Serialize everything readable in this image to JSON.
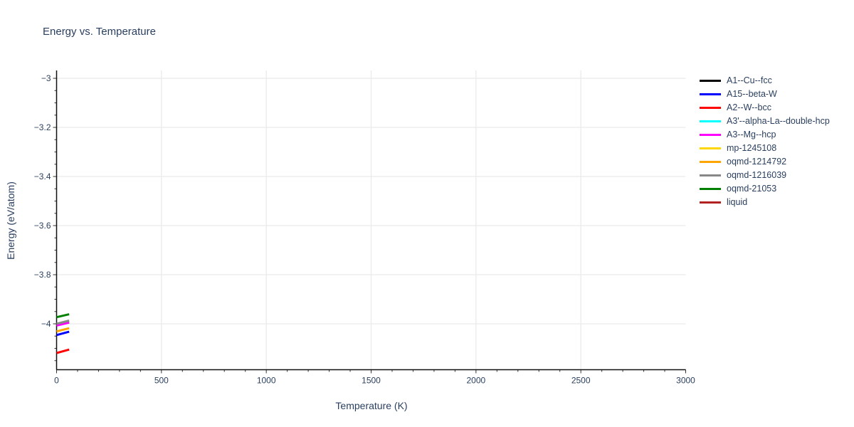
{
  "chart_data": {
    "type": "line",
    "title": "Energy vs. Temperature",
    "xlabel": "Temperature (K)",
    "ylabel": "Energy (eV/atom)",
    "xlim": [
      0,
      3000
    ],
    "ylim": [
      -4.187,
      -2.968
    ],
    "xticks": {
      "values": [
        0,
        500,
        1000,
        1500,
        2000,
        2500,
        3000
      ],
      "labels": [
        "0",
        "500",
        "1000",
        "1500",
        "2000",
        "2500",
        "3000"
      ]
    },
    "yticks": {
      "values": [
        -3,
        -3.2,
        -3.4,
        -3.6,
        -3.8,
        -4
      ],
      "labels": [
        "−3",
        "−3.2",
        "−3.4",
        "−3.6",
        "−3.8",
        "−4"
      ]
    },
    "x_minor_step": 100,
    "y_minor_step": 0.05,
    "grid": true,
    "legend_position": "top-right-outside",
    "colors": {
      "text": "#2a3f5f",
      "axis_line": "#111111",
      "tick": "#333333",
      "grid": "#ebebeb",
      "background": "#ffffff"
    },
    "series": [
      {
        "name": "A1--Cu--fcc",
        "color": "#000000",
        "x": [],
        "y": []
      },
      {
        "name": "A15--beta-W",
        "color": "#0000ff",
        "x": [
          0,
          60
        ],
        "y": [
          -4.046,
          -4.032
        ]
      },
      {
        "name": "A2--W--bcc",
        "color": "#ff0000",
        "x": [
          0,
          60
        ],
        "y": [
          -4.119,
          -4.105
        ]
      },
      {
        "name": "A3'--alpha-La--double-hcp",
        "color": "#00ffff",
        "x": [],
        "y": []
      },
      {
        "name": "A3--Mg--hcp",
        "color": "#ff00ff",
        "x": [
          0,
          60
        ],
        "y": [
          -4.007,
          -3.995
        ]
      },
      {
        "name": "mp-1245108",
        "color": "#ffd700",
        "x": [],
        "y": []
      },
      {
        "name": "oqmd-1214792",
        "color": "#ffa500",
        "x": [
          0,
          60
        ],
        "y": [
          -4.031,
          -4.018
        ]
      },
      {
        "name": "oqmd-1216039",
        "color": "#888888",
        "x": [
          0,
          60
        ],
        "y": [
          -4.0,
          -3.987
        ]
      },
      {
        "name": "oqmd-21053",
        "color": "#008000",
        "x": [
          0,
          60
        ],
        "y": [
          -3.973,
          -3.961
        ]
      },
      {
        "name": "liquid",
        "color": "#b22222",
        "x": [],
        "y": []
      }
    ]
  }
}
